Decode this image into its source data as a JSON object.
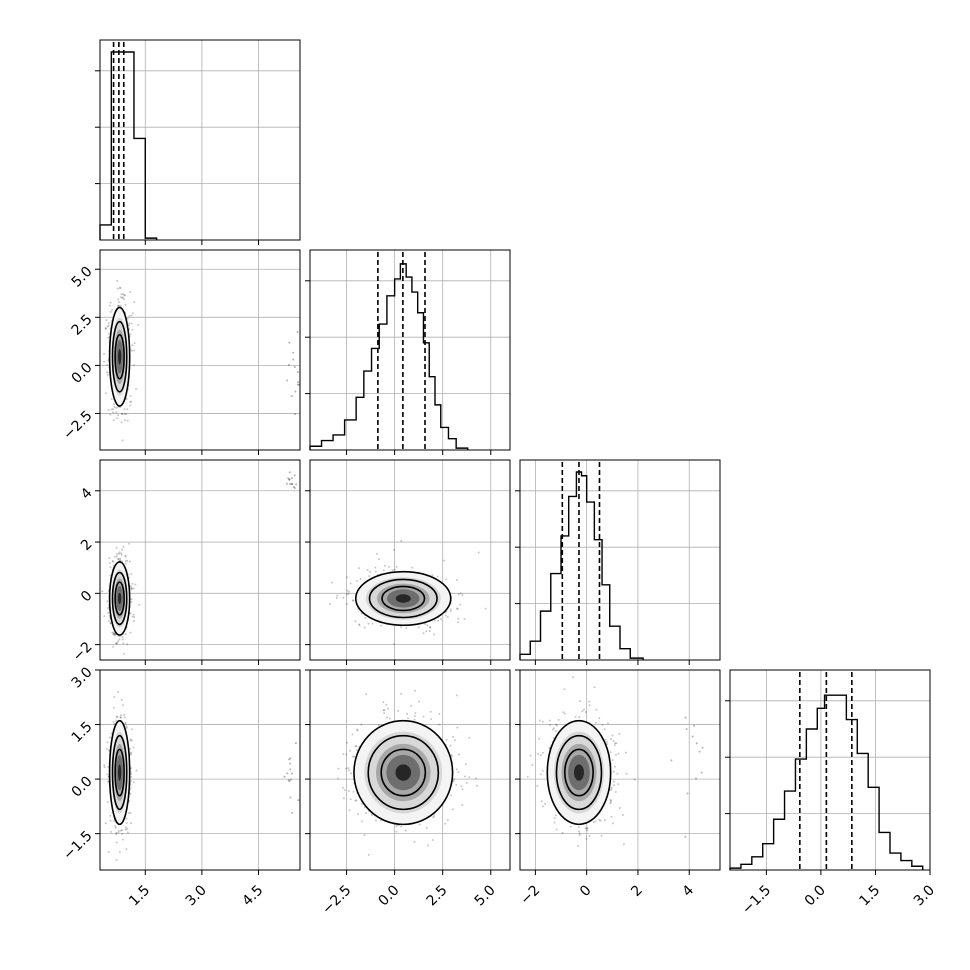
{
  "chart_data": {
    "type": "corner",
    "grid": true,
    "colors": {
      "line": "#000000",
      "grid": "#b0b0b0",
      "points": "#000000"
    },
    "parameters": [
      {
        "range": [
          0.3,
          5.6
        ],
        "ticks": [
          "1.5",
          "3.0",
          "4.5"
        ],
        "tick_values": [
          1.5,
          3.0,
          4.5
        ]
      },
      {
        "range": [
          -4.4,
          6.0
        ],
        "ticks": [
          "-2.5",
          "0.0",
          "2.5",
          "5.0"
        ],
        "tick_values": [
          -2.5,
          0.0,
          2.5,
          5.0
        ]
      },
      {
        "range": [
          -2.6,
          5.2
        ],
        "ticks": [
          "-2",
          "0",
          "2",
          "4"
        ],
        "tick_values": [
          -2,
          0,
          2,
          4
        ]
      },
      {
        "range": [
          -2.5,
          3.0
        ],
        "ticks": [
          "-1.5",
          "0.0",
          "1.5",
          "3.0"
        ],
        "tick_values": [
          -1.5,
          0.0,
          1.5,
          3.0
        ]
      }
    ],
    "marginals": [
      {
        "bin_edges": [
          0.3,
          0.6,
          0.75,
          0.9,
          1.05,
          1.2,
          1.35,
          1.5,
          1.8
        ],
        "counts": [
          0.08,
          1.0,
          1.0,
          1.0,
          1.0,
          0.54,
          0.54,
          0.01
        ],
        "quantiles": [
          0.66,
          0.8,
          0.93
        ]
      },
      {
        "bin_edges": [
          -4.4,
          -3.8,
          -3.2,
          -2.6,
          -2.0,
          -1.6,
          -1.2,
          -0.8,
          -0.4,
          0.0,
          0.3,
          0.6,
          0.9,
          1.2,
          1.5,
          1.8,
          2.1,
          2.4,
          2.8,
          3.2,
          3.8
        ],
        "counts": [
          0.02,
          0.05,
          0.08,
          0.16,
          0.28,
          0.42,
          0.54,
          0.67,
          0.82,
          0.91,
          0.99,
          0.92,
          0.84,
          0.73,
          0.57,
          0.39,
          0.24,
          0.12,
          0.06,
          0.01
        ],
        "quantiles": [
          -0.87,
          0.43,
          1.58
        ]
      },
      {
        "bin_edges": [
          -2.6,
          -2.2,
          -1.8,
          -1.4,
          -1.0,
          -0.7,
          -0.4,
          -0.2,
          0.0,
          0.3,
          0.6,
          0.9,
          1.3,
          1.7,
          2.2
        ],
        "counts": [
          0.03,
          0.1,
          0.26,
          0.46,
          0.66,
          0.87,
          1.0,
          0.98,
          0.84,
          0.64,
          0.4,
          0.18,
          0.06,
          0.01
        ],
        "quantiles": [
          -0.95,
          -0.3,
          0.5
        ]
      },
      {
        "bin_edges": [
          -2.5,
          -2.2,
          -1.9,
          -1.6,
          -1.3,
          -1.0,
          -0.7,
          -0.4,
          -0.1,
          0.1,
          0.4,
          0.7,
          1.0,
          1.3,
          1.6,
          1.9,
          2.2,
          2.5,
          2.8
        ],
        "counts": [
          0.01,
          0.03,
          0.07,
          0.14,
          0.27,
          0.42,
          0.59,
          0.75,
          0.86,
          0.93,
          0.93,
          0.8,
          0.62,
          0.44,
          0.2,
          0.09,
          0.05,
          0.02
        ],
        "quantiles": [
          -0.58,
          0.15,
          0.85
        ]
      }
    ],
    "pairs": [
      {
        "x": 0,
        "y": 1,
        "mean": [
          0.82,
          0.45
        ],
        "sd": [
          0.14,
          1.35
        ],
        "outliers": {
          "mean": [
            5.4,
            -0.8
          ],
          "sd": [
            0.1,
            1.1
          ]
        }
      },
      {
        "x": 0,
        "y": 2,
        "mean": [
          0.82,
          -0.2
        ],
        "sd": [
          0.14,
          0.75
        ],
        "outliers": {
          "mean": [
            5.4,
            4.4
          ],
          "sd": [
            0.1,
            0.25
          ]
        }
      },
      {
        "x": 0,
        "y": 3,
        "mean": [
          0.82,
          0.18
        ],
        "sd": [
          0.14,
          0.75
        ],
        "outliers": {
          "mean": [
            5.4,
            0.0
          ],
          "sd": [
            0.1,
            0.6
          ]
        }
      },
      {
        "x": 1,
        "y": 2,
        "mean": [
          0.45,
          -0.2
        ],
        "sd": [
          1.3,
          0.55
        ],
        "outliers": null
      },
      {
        "x": 1,
        "y": 3,
        "mean": [
          0.45,
          0.18
        ],
        "sd": [
          1.35,
          0.75
        ],
        "outliers": null
      },
      {
        "x": 2,
        "y": 3,
        "mean": [
          -0.3,
          0.18
        ],
        "sd": [
          0.65,
          0.75
        ],
        "outliers": {
          "mean": [
            4.2,
            0.2
          ],
          "sd": [
            0.6,
            0.8
          ]
        }
      }
    ]
  }
}
